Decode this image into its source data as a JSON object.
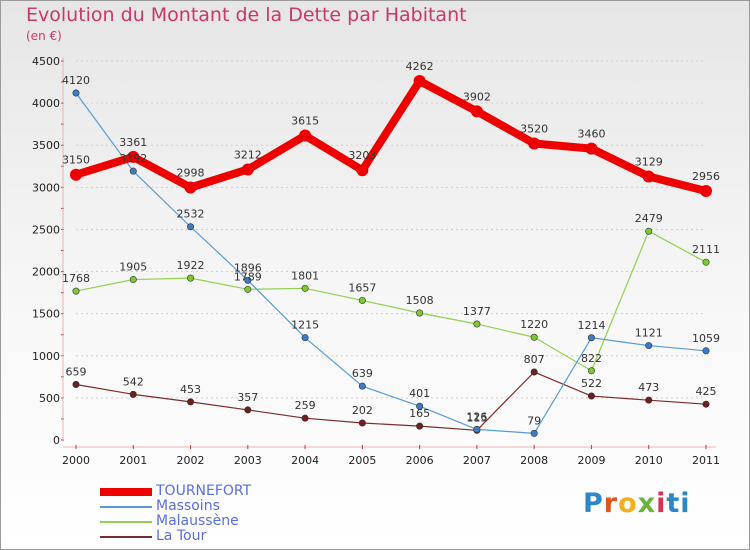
{
  "title": "Evolution du Montant de la Dette par Habitant",
  "subtitle": "(en €)",
  "brand": "Proxiti",
  "chart_data": {
    "type": "line",
    "title": "Evolution du Montant de la Dette par Habitant",
    "ylabel": "(en €)",
    "xlabel": "",
    "ylim": [
      0,
      4500
    ],
    "yticks": [
      0,
      500,
      1000,
      1500,
      2000,
      2500,
      3000,
      3500,
      4000,
      4500
    ],
    "categories": [
      "2000",
      "2001",
      "2002",
      "2003",
      "2004",
      "2005",
      "2006",
      "2007",
      "2008",
      "2009",
      "2010",
      "2011"
    ],
    "legend_position": "bottom-left",
    "series": [
      {
        "name": "TOURNEFORT",
        "color": "#ee0000",
        "marker": "#ee0000",
        "values": [
          3150,
          3361,
          2998,
          3212,
          3615,
          3203,
          4262,
          3902,
          3520,
          3460,
          3129,
          2956
        ]
      },
      {
        "name": "Massoins",
        "color": "#5b9bd5",
        "marker": "#3a7cc8",
        "values": [
          4120,
          3192,
          2532,
          1896,
          1215,
          639,
          401,
          126,
          79,
          1214,
          1121,
          1059
        ]
      },
      {
        "name": "Malaussène",
        "color": "#92d050",
        "marker": "#7ec832",
        "values": [
          1768,
          1905,
          1922,
          1789,
          1801,
          1657,
          1508,
          1377,
          1220,
          822,
          2479,
          2111
        ]
      },
      {
        "name": "La Tour",
        "color": "#7b2c2c",
        "marker": "#6e1e1e",
        "values": [
          659,
          542,
          453,
          357,
          259,
          202,
          165,
          115,
          807,
          522,
          473,
          425
        ]
      }
    ]
  }
}
